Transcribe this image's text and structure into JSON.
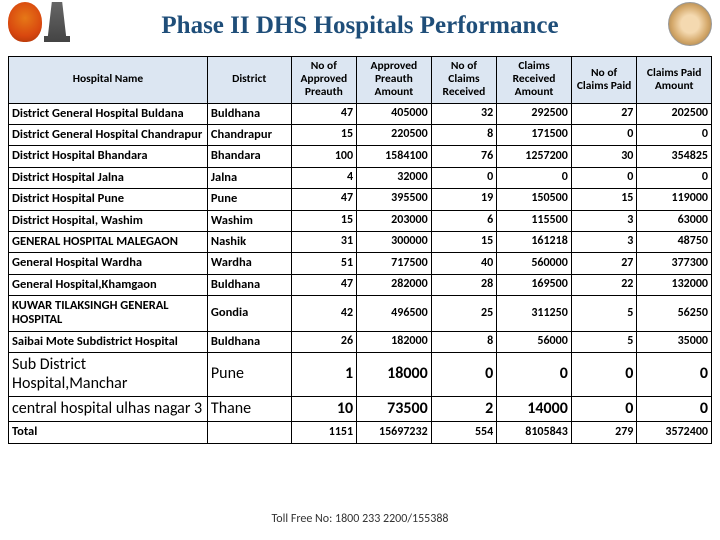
{
  "title": "Phase II  DHS Hospitals Performance",
  "footer": "Toll Free No: 1800 233 2200/155388",
  "headers": [
    "Hospital Name",
    "District",
    "No of Approved Preauth",
    "Approved Preauth Amount",
    "No of Claims Received",
    "Claims Received Amount",
    "No of Claims Paid",
    "Claims Paid Amount"
  ],
  "rows": [
    {
      "name": "District General Hospital Buldana",
      "dist": "Buldhana",
      "v": [
        "47",
        "405000",
        "32",
        "292500",
        "27",
        "202500"
      ]
    },
    {
      "name": "District General Hospital Chandrapur",
      "dist": "Chandrapur",
      "v": [
        "15",
        "220500",
        "8",
        "171500",
        "0",
        "0"
      ]
    },
    {
      "name": "District Hospital Bhandara",
      "dist": "Bhandara",
      "v": [
        "100",
        "1584100",
        "76",
        "1257200",
        "30",
        "354825"
      ]
    },
    {
      "name": "District Hospital Jalna",
      "dist": "Jalna",
      "v": [
        "4",
        "32000",
        "0",
        "0",
        "0",
        "0"
      ]
    },
    {
      "name": "District Hospital Pune",
      "dist": "Pune",
      "v": [
        "47",
        "395500",
        "19",
        "150500",
        "15",
        "119000"
      ]
    },
    {
      "name": "District Hospital, Washim",
      "dist": "Washim",
      "v": [
        "15",
        "203000",
        "6",
        "115500",
        "3",
        "63000"
      ]
    },
    {
      "name": "GENERAL HOSPITAL MALEGAON",
      "dist": "Nashik",
      "v": [
        "31",
        "300000",
        "15",
        "161218",
        "3",
        "48750"
      ]
    },
    {
      "name": "General Hospital Wardha",
      "dist": "Wardha",
      "v": [
        "51",
        "717500",
        "40",
        "560000",
        "27",
        "377300"
      ]
    },
    {
      "name": "General Hospital,Khamgaon",
      "dist": "Buldhana",
      "v": [
        "47",
        "282000",
        "28",
        "169500",
        "22",
        "132000"
      ]
    },
    {
      "name": "KUWAR TILAKSINGH  GENERAL HOSPITAL",
      "dist": "Gondia",
      "v": [
        "42",
        "496500",
        "25",
        "311250",
        "5",
        "56250"
      ]
    },
    {
      "name": "Saibai Mote Subdistrict Hospital",
      "dist": "Buldhana",
      "v": [
        "26",
        "182000",
        "8",
        "56000",
        "5",
        "35000"
      ]
    },
    {
      "name": "Sub District Hospital,Manchar",
      "dist": "Pune",
      "v": [
        "1",
        "18000",
        "0",
        "0",
        "0",
        "0"
      ],
      "big": true,
      "plain": true
    },
    {
      "name": "central hospital ulhas nagar 3",
      "dist": "Thane",
      "v": [
        "10",
        "73500",
        "2",
        "14000",
        "0",
        "0"
      ],
      "big": true,
      "plain": true
    }
  ],
  "total": {
    "name": "Total",
    "dist": "",
    "v": [
      "1151",
      "15697232",
      "554",
      "8105843",
      "279",
      "3572400"
    ]
  }
}
